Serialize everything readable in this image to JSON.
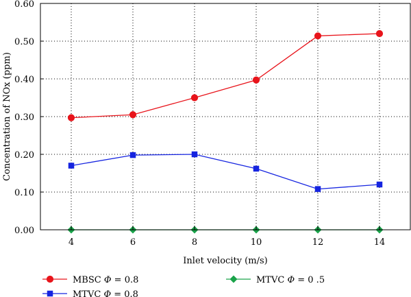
{
  "chart_data": {
    "type": "line",
    "x": [
      4,
      6,
      8,
      10,
      12,
      14
    ],
    "xlabel": "Inlet velocity (m/s)",
    "ylabel": "Concentration of NOx (ppm)",
    "xlim": [
      3,
      15
    ],
    "ylim": [
      0,
      0.6
    ],
    "xticks": [
      "4",
      "6",
      "8",
      "10",
      "12",
      "14"
    ],
    "yticks": [
      "0.00",
      "0.10",
      "0.20",
      "0.30",
      "0.40",
      "0.50",
      "0.60"
    ],
    "grid": "dotted",
    "legend_position": "bottom",
    "series": [
      {
        "name": "MBSC Φ = 0.8",
        "legend_prefix": "MBSC ",
        "legend_phi": "Φ",
        "legend_suffix": " = 0.8",
        "color": "#e8141b",
        "marker": "circle",
        "values": [
          0.297,
          0.305,
          0.35,
          0.397,
          0.514,
          0.52
        ]
      },
      {
        "name": "MTVC Φ = 0.8",
        "legend_prefix": "MTVC ",
        "legend_phi": "Φ",
        "legend_suffix": " = 0.8",
        "color": "#1524e0",
        "marker": "square",
        "values": [
          0.17,
          0.198,
          0.2,
          0.162,
          0.108,
          0.12
        ]
      },
      {
        "name": "MTVC Φ = 0 .5",
        "legend_prefix": "MTVC ",
        "legend_phi": "Φ",
        "legend_suffix": " = 0 .5",
        "color": "#1aa34a",
        "marker": "diamond",
        "values": [
          0,
          0,
          0,
          0,
          0,
          0
        ]
      }
    ]
  }
}
